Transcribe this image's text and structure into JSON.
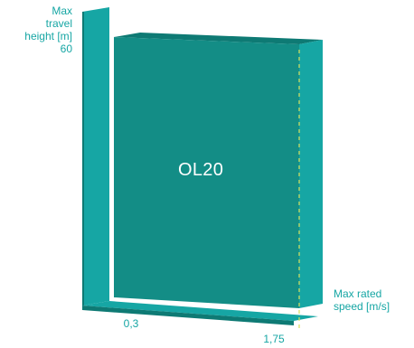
{
  "colors": {
    "front_face": "#138d86",
    "top_face": "#0e7a74",
    "side_face": "#16a6a4",
    "axis_dark": "#0e7a74",
    "axis_light": "#16a6a4",
    "dashed_line": "#d8e05a",
    "label_text": "#16a6a4",
    "model_text": "#ffffff"
  },
  "model_label": "OL20",
  "y_axis": {
    "title_line1": "Max",
    "title_line2": "travel",
    "title_line3": "height [m]",
    "max_value": "60"
  },
  "x_axis": {
    "title_line1": "Max rated",
    "title_line2": "speed [m/s]",
    "min_value": "0,3",
    "max_value": "1,75"
  }
}
